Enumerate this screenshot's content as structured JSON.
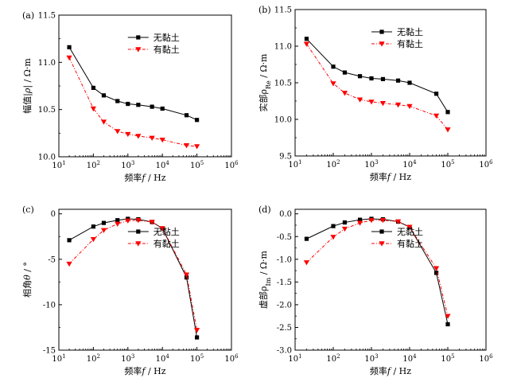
{
  "colors": {
    "series1": "#000000",
    "series2": "#ff0000",
    "axis": "#000000"
  },
  "chart_data": [
    {
      "panel_label": "(a)",
      "type": "line",
      "xscale": "log",
      "xlim": [
        10,
        1000000
      ],
      "ylim": [
        10.0,
        11.5
      ],
      "xticks": [
        10,
        100,
        1000,
        10000,
        100000,
        1000000
      ],
      "xtick_labels": [
        {
          "base": "10",
          "exp": "1"
        },
        {
          "base": "10",
          "exp": "2"
        },
        {
          "base": "10",
          "exp": "3"
        },
        {
          "base": "10",
          "exp": "4"
        },
        {
          "base": "10",
          "exp": "5"
        },
        {
          "base": "10",
          "exp": "6"
        }
      ],
      "yticks": [
        10.0,
        10.5,
        11.0,
        11.5
      ],
      "ytick_labels": [
        "10.0",
        "10.5",
        "11.0",
        "11.5"
      ],
      "xlabel": "频率f / Hz",
      "ylabel": "幅值|ρ| / Ω·m",
      "legend_position": "top-right",
      "series": [
        {
          "name": "无黏土",
          "marker": "square",
          "x": [
            20,
            100,
            200,
            500,
            1000,
            2000,
            5000,
            10000,
            50000,
            100000
          ],
          "y": [
            11.16,
            10.73,
            10.65,
            10.59,
            10.56,
            10.55,
            10.53,
            10.51,
            10.44,
            10.39
          ]
        },
        {
          "name": "有黏土",
          "marker": "triangle-down",
          "x": [
            20,
            100,
            200,
            500,
            1000,
            2000,
            5000,
            10000,
            50000,
            100000
          ],
          "y": [
            11.05,
            10.51,
            10.37,
            10.27,
            10.24,
            10.22,
            10.2,
            10.18,
            10.12,
            10.11
          ]
        }
      ]
    },
    {
      "panel_label": "(b)",
      "type": "line",
      "xscale": "log",
      "xlim": [
        10,
        1000000
      ],
      "ylim": [
        9.5,
        11.5
      ],
      "xticks": [
        10,
        100,
        1000,
        10000,
        100000,
        1000000
      ],
      "xtick_labels": [
        {
          "base": "10",
          "exp": "1"
        },
        {
          "base": "10",
          "exp": "2"
        },
        {
          "base": "10",
          "exp": "3"
        },
        {
          "base": "10",
          "exp": "4"
        },
        {
          "base": "10",
          "exp": "5"
        },
        {
          "base": "10",
          "exp": "6"
        }
      ],
      "yticks": [
        9.5,
        10.0,
        10.5,
        11.0,
        11.5
      ],
      "ytick_labels": [
        "9.5",
        "10.0",
        "10.5",
        "11.0",
        "11.5"
      ],
      "xlabel": "频率f / Hz",
      "ylabel": "实部ρRe / Ω·m",
      "legend_position": "top-right",
      "series": [
        {
          "name": "无黏土",
          "marker": "square",
          "x": [
            20,
            100,
            200,
            500,
            1000,
            2000,
            5000,
            10000,
            50000,
            100000
          ],
          "y": [
            11.1,
            10.72,
            10.64,
            10.59,
            10.56,
            10.55,
            10.53,
            10.5,
            10.35,
            10.1
          ]
        },
        {
          "name": "有黏土",
          "marker": "triangle-down",
          "x": [
            20,
            100,
            200,
            500,
            1000,
            2000,
            5000,
            10000,
            50000,
            100000
          ],
          "y": [
            11.03,
            10.49,
            10.36,
            10.27,
            10.24,
            10.22,
            10.2,
            10.18,
            10.05,
            9.86
          ]
        }
      ]
    },
    {
      "panel_label": "(c)",
      "type": "line",
      "xscale": "log",
      "xlim": [
        10,
        1000000
      ],
      "ylim": [
        -15,
        0.5
      ],
      "xticks": [
        10,
        100,
        1000,
        10000,
        100000,
        1000000
      ],
      "xtick_labels": [
        {
          "base": "10",
          "exp": "1"
        },
        {
          "base": "10",
          "exp": "2"
        },
        {
          "base": "10",
          "exp": "3"
        },
        {
          "base": "10",
          "exp": "4"
        },
        {
          "base": "10",
          "exp": "5"
        },
        {
          "base": "10",
          "exp": "6"
        }
      ],
      "yticks": [
        0,
        -5,
        -10,
        -15
      ],
      "ytick_labels": [
        "0",
        "-5",
        "-10",
        "-15"
      ],
      "xlabel": "频率f / Hz",
      "ylabel": "相角θ / °",
      "legend_position": "top-right",
      "series": [
        {
          "name": "无黏土",
          "marker": "square",
          "x": [
            20,
            100,
            200,
            500,
            1000,
            2000,
            5000,
            10000,
            50000,
            100000
          ],
          "y": [
            -2.9,
            -1.4,
            -1.0,
            -0.7,
            -0.55,
            -0.6,
            -0.9,
            -1.6,
            -7.0,
            -13.6
          ]
        },
        {
          "name": "有黏土",
          "marker": "triangle-down",
          "x": [
            20,
            100,
            200,
            500,
            1000,
            2000,
            5000,
            10000,
            50000,
            100000
          ],
          "y": [
            -5.5,
            -2.8,
            -1.8,
            -1.1,
            -0.75,
            -0.7,
            -0.9,
            -1.6,
            -6.7,
            -12.8
          ]
        }
      ]
    },
    {
      "panel_label": "(d)",
      "type": "line",
      "xscale": "log",
      "xlim": [
        10,
        1000000
      ],
      "ylim": [
        -3.0,
        0.1
      ],
      "xticks": [
        10,
        100,
        1000,
        10000,
        100000,
        1000000
      ],
      "xtick_labels": [
        {
          "base": "10",
          "exp": "1"
        },
        {
          "base": "10",
          "exp": "2"
        },
        {
          "base": "10",
          "exp": "3"
        },
        {
          "base": "10",
          "exp": "4"
        },
        {
          "base": "10",
          "exp": "5"
        },
        {
          "base": "10",
          "exp": "6"
        }
      ],
      "yticks": [
        0.0,
        -0.5,
        -1.0,
        -1.5,
        -2.0,
        -2.5,
        -3.0
      ],
      "ytick_labels": [
        "0.0",
        "-0.5",
        "-1.0",
        "-1.5",
        "-2.0",
        "-2.5",
        "-3.0"
      ],
      "xlabel": "频率f / Hz",
      "ylabel": "虚部ρIm / Ω·m",
      "legend_position": "top-right",
      "series": [
        {
          "name": "无黏土",
          "marker": "square",
          "x": [
            20,
            100,
            200,
            500,
            1000,
            2000,
            5000,
            10000,
            50000,
            100000
          ],
          "y": [
            -0.55,
            -0.27,
            -0.19,
            -0.13,
            -0.11,
            -0.12,
            -0.17,
            -0.29,
            -1.3,
            -2.43
          ]
        },
        {
          "name": "有黏土",
          "marker": "triangle-down",
          "x": [
            20,
            100,
            200,
            500,
            1000,
            2000,
            5000,
            10000,
            50000,
            100000
          ],
          "y": [
            -1.07,
            -0.51,
            -0.33,
            -0.2,
            -0.14,
            -0.14,
            -0.17,
            -0.29,
            -1.2,
            -2.25
          ]
        }
      ]
    }
  ]
}
